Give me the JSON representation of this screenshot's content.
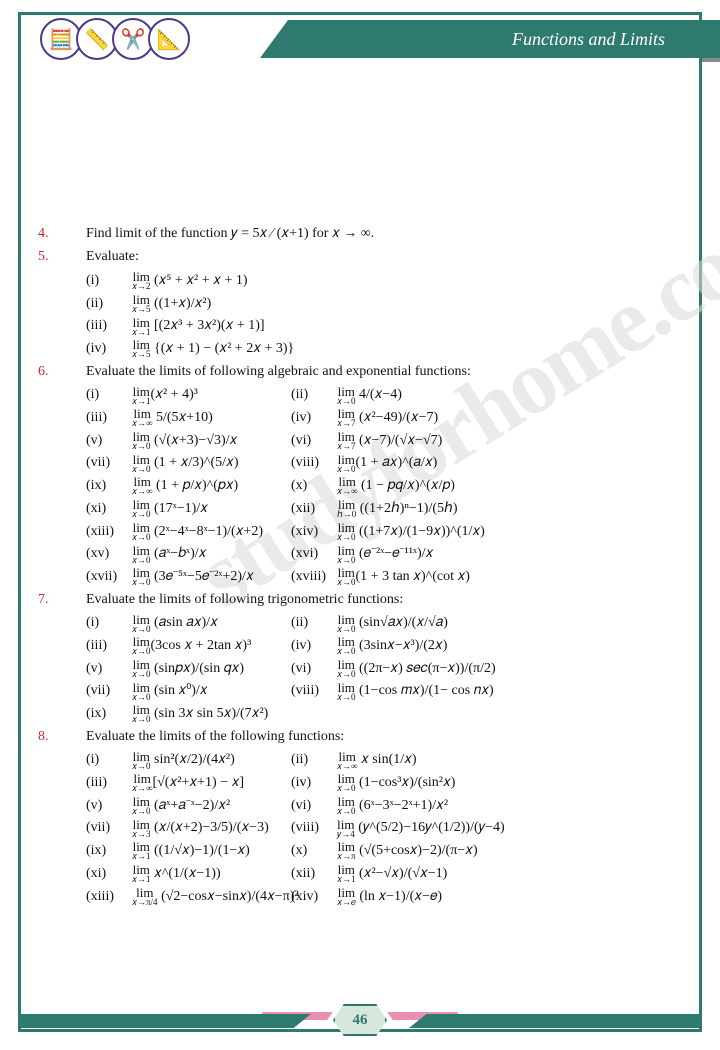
{
  "header": {
    "chapter_title": "Functions and Limits"
  },
  "icons": [
    "calc-icon",
    "ruler-icon",
    "compass-icon",
    "globe-icon"
  ],
  "watermark": "studyforhome.com",
  "page_number": "46",
  "questions": [
    {
      "num": "4.",
      "text": "Find limit of the function  𝑦 = 5𝑥 ⁄ (𝑥+1)  for 𝑥 → ∞."
    },
    {
      "num": "5.",
      "text": "Evaluate:",
      "cols": 2,
      "subs": [
        {
          "tag": "(i)",
          "expr": "lim_{𝑥→2} (𝑥⁵ + 𝑥² + 𝑥 + 1)"
        },
        {
          "tag": "(ii)",
          "expr": "lim_{𝑥→5} ((1+𝑥)/𝑥²)"
        },
        {
          "tag": "(iii)",
          "expr": "lim_{𝑥→1} [(2𝑥³ + 3𝑥²)(𝑥 + 1)]"
        },
        {
          "tag": "(iv)",
          "expr": "lim_{𝑥→5} {(𝑥 + 1) − (𝑥² + 2𝑥 + 3)}"
        }
      ]
    },
    {
      "num": "6.",
      "text": "Evaluate the limits of following algebraic and exponential functions:",
      "cols": 3,
      "subs": [
        {
          "tag": "(i)",
          "expr": "lim_{𝑥→1}(𝑥² + 4)³"
        },
        {
          "tag": "(ii)",
          "expr": "lim_{𝑥→0} 4/(𝑥−4)"
        },
        {
          "tag": "(iii)",
          "expr": "lim_{𝑥→∞} 5/(5𝑥+10)"
        },
        {
          "tag": "(iv)",
          "expr": "lim_{𝑥→7} (𝑥²−49)/(𝑥−7)"
        },
        {
          "tag": "(v)",
          "expr": "lim_{𝑥→0} (√(𝑥+3)−√3)/𝑥"
        },
        {
          "tag": "(vi)",
          "expr": "lim_{𝑥→7} (𝑥−7)/(√𝑥−√7)"
        },
        {
          "tag": "(vii)",
          "expr": "lim_{𝑥→0} (1 + 𝑥/3)^(5/𝑥)"
        },
        {
          "tag": "(viii)",
          "expr": "lim_{𝑥→0}(1 + 𝑎𝑥)^(𝑎/𝑥)"
        },
        {
          "tag": "(ix)",
          "expr": "lim_{𝑥→∞} (1 + 𝑝/𝑥)^(𝑝𝑥)"
        },
        {
          "tag": "(x)",
          "expr": "lim_{𝑥→∞} (1 − 𝑝𝑞/𝑥)^(𝑥/𝑝)"
        },
        {
          "tag": "(xi)",
          "expr": "lim_{𝑥→0} (17ˣ−1)/𝑥"
        },
        {
          "tag": "(xii)",
          "expr": "lim_{ℎ→0} ((1+2ℎ)ⁿ−1)/(5ℎ)"
        },
        {
          "tag": "(xiii)",
          "expr": "lim_{𝑥→0} (2ˣ−4ˣ−8ˣ−1)/(𝑥+2)"
        },
        {
          "tag": "(xiv)",
          "expr": "lim_{𝑥→0} ((1+7𝑥)/(1−9𝑥))^(1/𝑥)"
        },
        {
          "tag": "(xv)",
          "expr": "lim_{𝑥→0} (𝑎ˣ−𝑏ˣ)/𝑥"
        },
        {
          "tag": "(xvi)",
          "expr": "lim_{𝑥→0} (𝑒⁻²ˣ−𝑒⁻¹¹ˣ)/𝑥"
        },
        {
          "tag": "(xvii)",
          "expr": "lim_{𝑥→0} (3𝑒⁻⁵ˣ−5𝑒⁻²ˣ+2)/𝑥"
        },
        {
          "tag": "(xviii)",
          "expr": "lim_{𝑥→0}(1 + 3 tan 𝑥)^(cot 𝑥)"
        }
      ]
    },
    {
      "num": "7.",
      "text": "Evaluate the limits of following trigonometric functions:",
      "cols": 3,
      "subs": [
        {
          "tag": "(i)",
          "expr": "lim_{𝑥→0} (𝑎sin 𝑎𝑥)/𝑥"
        },
        {
          "tag": "(ii)",
          "expr": "lim_{𝑥→0} (sin√𝑎𝑥)/(𝑥/√𝑎)"
        },
        {
          "tag": "(iii)",
          "expr": "lim_{𝑥→0}(3cos 𝑥 + 2tan 𝑥)³"
        },
        {
          "tag": "(iv)",
          "expr": "lim_{𝑥→0} (3sin𝑥−𝑥³)/(2𝑥)"
        },
        {
          "tag": "(v)",
          "expr": "lim_{𝑥→0} (sin𝑝𝑥)/(sin 𝑞𝑥)"
        },
        {
          "tag": "(vi)",
          "expr": "lim_{𝑥→0} ((2π−𝑥) 𝑠𝑒𝑐(π−𝑥))/(π/2)"
        },
        {
          "tag": "(vii)",
          "expr": "lim_{𝑥→0} (sin 𝑥⁰)/𝑥"
        },
        {
          "tag": "(viii)",
          "expr": "lim_{𝑥→0} (1−cos 𝑚𝑥)/(1− cos 𝑛𝑥)"
        },
        {
          "tag": "(ix)",
          "expr": "lim_{𝑥→0} (sin 3𝑥 sin 5𝑥)/(7𝑥²)"
        }
      ]
    },
    {
      "num": "8.",
      "text": "Evaluate the limits of the following functions:",
      "cols": 3,
      "subs": [
        {
          "tag": "(i)",
          "expr": "lim_{𝑥→0} sin²(𝑥/2)/(4𝑥²)"
        },
        {
          "tag": "(ii)",
          "expr": "lim_{𝑥→∞} 𝑥 sin(1/𝑥)"
        },
        {
          "tag": "(iii)",
          "expr": "lim_{𝑥→∞}[√(𝑥²+𝑥+1) − 𝑥]"
        },
        {
          "tag": "(iv)",
          "expr": "lim_{𝑥→0} (1−cos³𝑥)/(sin²𝑥)"
        },
        {
          "tag": "(v)",
          "expr": "lim_{𝑥→0} (𝑎ˣ+𝑎⁻ˣ−2)/𝑥²"
        },
        {
          "tag": "(vi)",
          "expr": "lim_{𝑥→0} (6ˣ−3ˣ−2ˣ+1)/𝑥²"
        },
        {
          "tag": "(vii)",
          "expr": "lim_{𝑥→3} (𝑥/(𝑥+2)−3/5)/(𝑥−3)"
        },
        {
          "tag": "(viii)",
          "expr": "lim_{𝑦→4} (𝑦^(5/2)−16𝑦^(1/2))/(𝑦−4)"
        },
        {
          "tag": "(ix)",
          "expr": "lim_{𝑥→1} ((1/√𝑥)−1)/(1−𝑥)"
        },
        {
          "tag": "(x)",
          "expr": "lim_{𝑥→π} (√(5+cos𝑥)−2)/(π−𝑥)"
        },
        {
          "tag": "(xi)",
          "expr": "lim_{𝑥→1} 𝑥^(1/(𝑥−1))"
        },
        {
          "tag": "(xii)",
          "expr": "lim_{𝑥→1} (𝑥²−√𝑥)/(√𝑥−1)"
        },
        {
          "tag": "(xiii)",
          "expr": "lim_{𝑥→π/4} (√2−cos𝑥−sin𝑥)/(4𝑥−π)²"
        },
        {
          "tag": "(xiv)",
          "expr": "lim_{𝑥→𝑒} (ln 𝑥−1)/(𝑥−𝑒)"
        }
      ]
    }
  ],
  "colors": {
    "frame": "#2f7a6e",
    "accent_red": "#c82a2a",
    "pink": "#e98fb3",
    "watermark": "#d9d9d9"
  }
}
